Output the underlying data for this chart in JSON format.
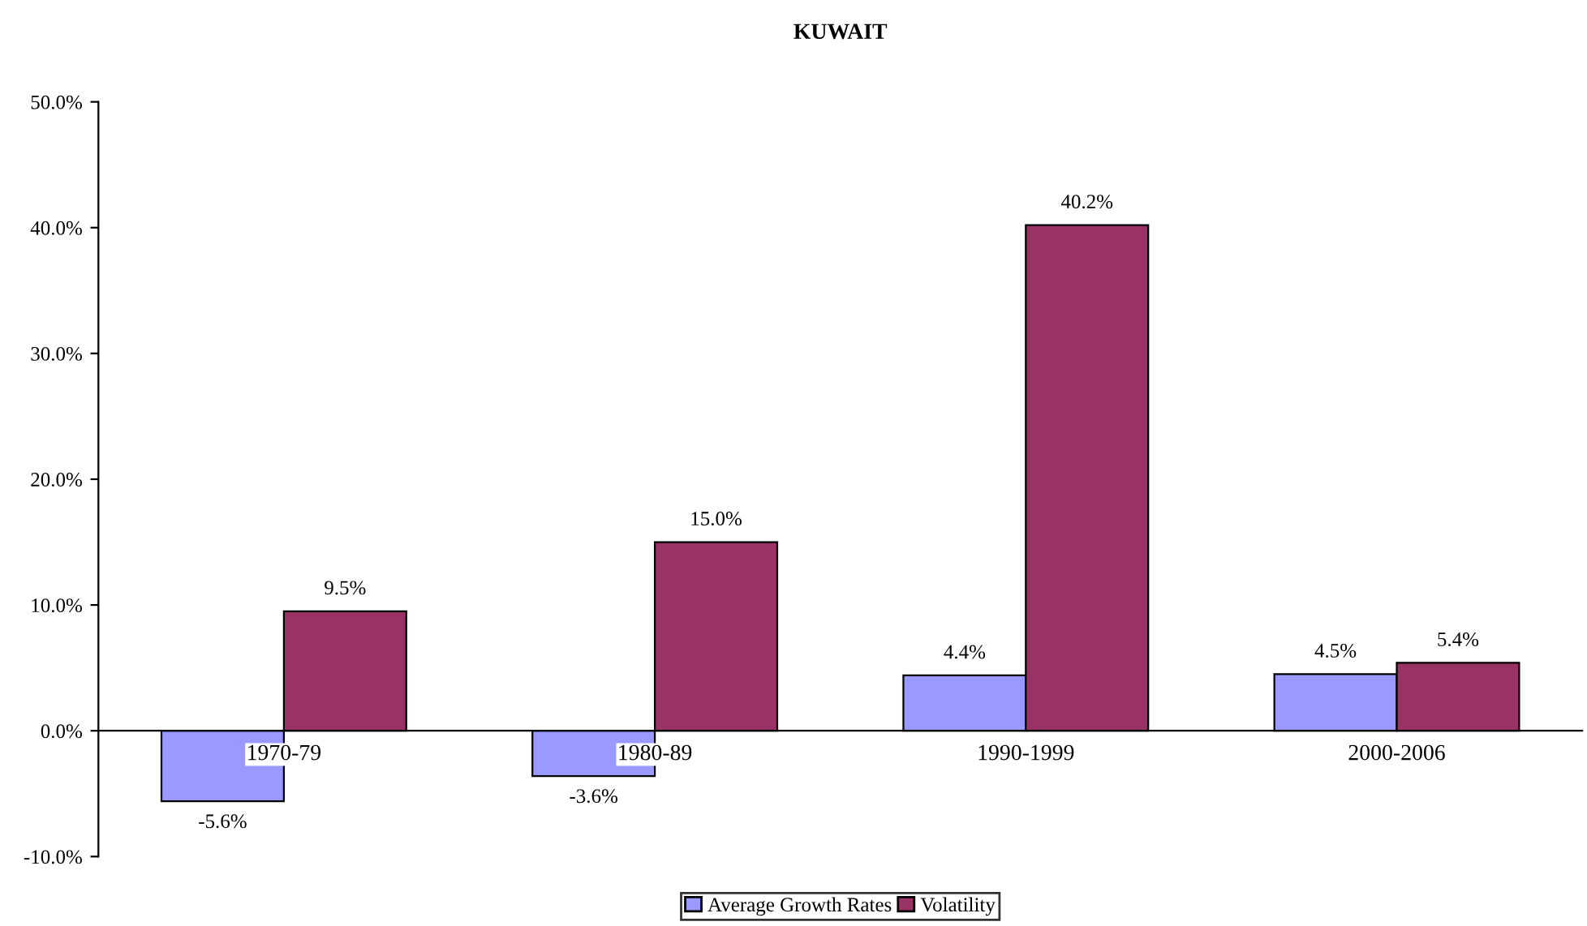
{
  "chart_data": {
    "type": "bar",
    "title": "KUWAIT",
    "categories": [
      "1970-79",
      "1980-89",
      "1990-1999",
      "2000-2006"
    ],
    "series": [
      {
        "name": "Average Growth Rates",
        "color": "#9999ff",
        "values": [
          -5.6,
          -3.6,
          4.4,
          4.5
        ],
        "value_labels": [
          "-5.6%",
          "-3.6%",
          "4.4%",
          "4.5%"
        ]
      },
      {
        "name": "Volatility",
        "color": "#993366",
        "values": [
          9.5,
          15.0,
          40.2,
          5.4
        ],
        "value_labels": [
          "9.5%",
          "15.0%",
          "40.2%",
          "5.4%"
        ]
      }
    ],
    "ylim": [
      -10,
      50
    ],
    "yticks": [
      {
        "value": -10,
        "label": "-10.0%"
      },
      {
        "value": 0,
        "label": "0.0%"
      },
      {
        "value": 10,
        "label": "10.0%"
      },
      {
        "value": 20,
        "label": "20.0%"
      },
      {
        "value": 30,
        "label": "30.0%"
      },
      {
        "value": 40,
        "label": "40.0%"
      },
      {
        "value": 50,
        "label": "50.0%"
      }
    ],
    "grid": false,
    "legend": "bottom"
  }
}
